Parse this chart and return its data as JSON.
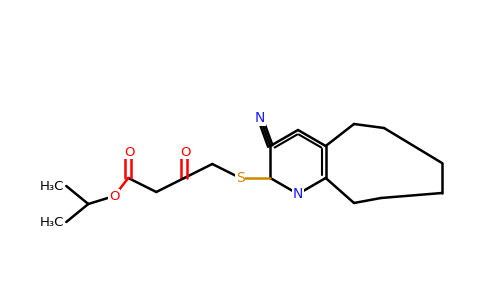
{
  "background_color": "#ffffff",
  "bond_color": "#000000",
  "atom_colors": {
    "N": "#1a1aff",
    "O": "#ff0000",
    "S": "#cc8800",
    "C": "#000000"
  },
  "figsize": [
    4.84,
    3.0
  ],
  "dpi": 100
}
